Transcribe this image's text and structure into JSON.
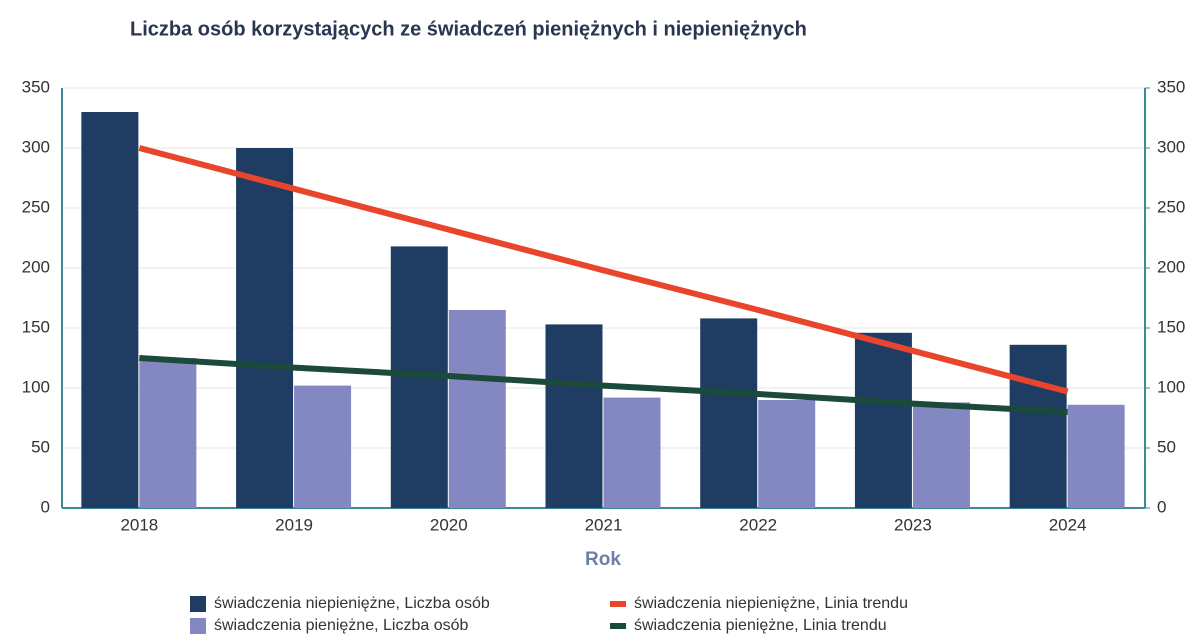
{
  "chart_data": {
    "type": "bar",
    "title": "Liczba osób korzystających ze świadczeń pieniężnych i niepieniężnych",
    "x_label": "Rok",
    "categories": [
      "2018",
      "2019",
      "2020",
      "2021",
      "2022",
      "2023",
      "2024"
    ],
    "series": [
      {
        "name": "świadczenia niepieniężne, Liczba osób",
        "color": "#1f3c62",
        "type": "bar",
        "values": [
          330,
          300,
          218,
          153,
          158,
          146,
          136
        ]
      },
      {
        "name": "świadczenia pieniężne, Liczba osób",
        "color": "#8488c2",
        "type": "bar",
        "values": [
          125,
          102,
          165,
          92,
          90,
          88,
          86
        ]
      },
      {
        "name": "świadczenia niepieniężne, Linia trendu",
        "color": "#e8452c",
        "type": "line",
        "values": [
          300,
          266,
          232,
          198,
          165,
          131,
          97
        ]
      },
      {
        "name": "świadczenia pieniężne, Linia trendu",
        "color": "#1c4a3a",
        "type": "line",
        "values": [
          125,
          117,
          110,
          102,
          95,
          87,
          80
        ]
      }
    ],
    "ylim": [
      0,
      350
    ],
    "yticks": [
      0,
      50,
      100,
      150,
      200,
      250,
      300,
      350
    ],
    "y2lim": [
      0,
      350
    ],
    "y2ticks": [
      0,
      50,
      100,
      150,
      200,
      250,
      300,
      350
    ],
    "grid": true
  }
}
